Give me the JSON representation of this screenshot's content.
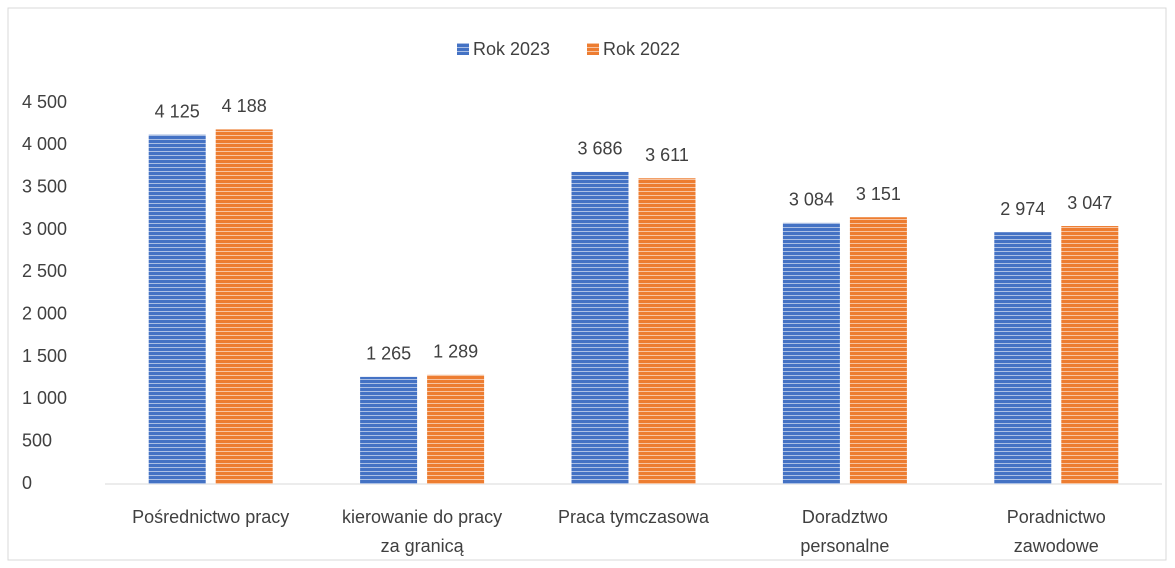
{
  "chart_data": {
    "type": "bar",
    "categories": [
      [
        "Pośrednictwo pracy"
      ],
      [
        "kierowanie do pracy",
        "za granicą"
      ],
      [
        "Praca tymczasowa"
      ],
      [
        "Doradztwo",
        "personalne"
      ],
      [
        "Poradnictwo",
        "zawodowe"
      ]
    ],
    "series": [
      {
        "name": "Rok 2023",
        "color": "#4472c4",
        "values": [
          4125,
          1265,
          3686,
          3084,
          2974
        ],
        "value_labels": [
          "4 125",
          "1 265",
          "3 686",
          "3 084",
          "2 974"
        ]
      },
      {
        "name": "Rok 2022",
        "color": "#ed7d31",
        "values": [
          4188,
          1289,
          3611,
          3151,
          3047
        ],
        "value_labels": [
          "4 188",
          "1 289",
          "3 611",
          "3 151",
          "3 047"
        ]
      }
    ],
    "ylim": [
      0,
      4500
    ],
    "yticks": [
      0,
      500,
      {
        "value": 1000,
        "label": "1 000"
      },
      {
        "value": 1500,
        "label": "1 500"
      },
      {
        "value": 2000,
        "label": "2 000"
      },
      {
        "value": 2500,
        "label": "2 500"
      },
      {
        "value": 3000,
        "label": "3 000"
      },
      {
        "value": 3500,
        "label": "3 500"
      },
      {
        "value": 4000,
        "label": "4 000"
      },
      {
        "value": 4500,
        "label": "4 500"
      }
    ],
    "grid": false,
    "legend": "top"
  }
}
